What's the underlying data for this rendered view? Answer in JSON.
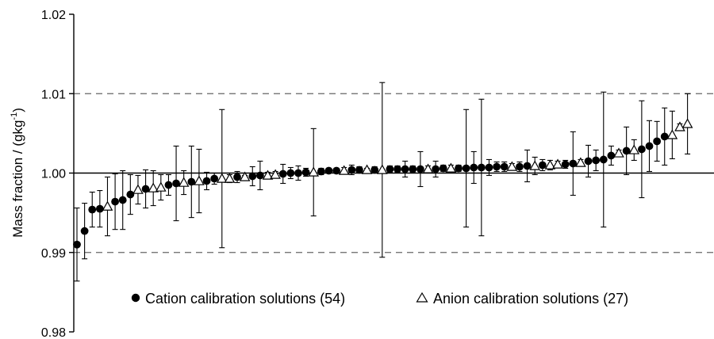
{
  "chart_data": {
    "type": "scatter",
    "title": "",
    "xlabel": "",
    "ylabel": "Mass fraction  /  (gkg",
    "ylabel_superscript": "-1",
    "ylabel_suffix": ")",
    "ylim": [
      0.98,
      1.02
    ],
    "y_ticks": [
      "0.98",
      "0.99",
      "1.00",
      "1.01",
      "1.02"
    ],
    "grid": "dashed reference lines at 0.99 and 1.01, solid line at 1.00",
    "legend_position": "bottom",
    "series": [
      {
        "name": "Cation calibration solutions (54)",
        "marker": "filled-circle",
        "color": "#000000",
        "points": [
          {
            "x": 1,
            "y": 0.991,
            "err": 0.0046
          },
          {
            "x": 2,
            "y": 0.9927,
            "err": 0.0035
          },
          {
            "x": 3,
            "y": 0.9954,
            "err": 0.0022
          },
          {
            "x": 4,
            "y": 0.9955,
            "err": 0.0023
          },
          {
            "x": 6,
            "y": 0.9964,
            "err": 0.0035
          },
          {
            "x": 7,
            "y": 0.9966,
            "err": 0.0037
          },
          {
            "x": 8,
            "y": 0.9973,
            "err": 0.0025
          },
          {
            "x": 10,
            "y": 0.998,
            "err": 0.0024
          },
          {
            "x": 13,
            "y": 0.9985,
            "err": 0.0013
          },
          {
            "x": 14,
            "y": 0.9987,
            "err": 0.0047
          },
          {
            "x": 16,
            "y": 0.9989,
            "err": 0.0045
          },
          {
            "x": 18,
            "y": 0.999,
            "err": 0.0011
          },
          {
            "x": 19,
            "y": 0.9993,
            "err": 0.0007
          },
          {
            "x": 22,
            "y": 0.9995,
            "err": 0.0007
          },
          {
            "x": 24,
            "y": 0.9996,
            "err": 0.0012
          },
          {
            "x": 25,
            "y": 0.9997,
            "err": 0.0018
          },
          {
            "x": 28,
            "y": 0.9999,
            "err": 0.0012
          },
          {
            "x": 29,
            "y": 1.0,
            "err": 0.0007
          },
          {
            "x": 30,
            "y": 1.0,
            "err": 0.0009
          },
          {
            "x": 31,
            "y": 1.0001,
            "err": 0.0005
          },
          {
            "x": 33,
            "y": 1.0002,
            "err": 0.0004
          },
          {
            "x": 34,
            "y": 1.0003,
            "err": 0.0003
          },
          {
            "x": 35,
            "y": 1.0003,
            "err": 0.0003
          },
          {
            "x": 37,
            "y": 1.0004,
            "err": 0.0006
          },
          {
            "x": 38,
            "y": 1.0004,
            "err": 0.0004
          },
          {
            "x": 40,
            "y": 1.0004,
            "err": 0.0004
          },
          {
            "x": 42,
            "y": 1.0005,
            "err": 0.0004
          },
          {
            "x": 43,
            "y": 1.0005,
            "err": 0.0004
          },
          {
            "x": 44,
            "y": 1.0005,
            "err": 0.001
          },
          {
            "x": 45,
            "y": 1.0005,
            "err": 0.0004
          },
          {
            "x": 46,
            "y": 1.0005,
            "err": 0.0022
          },
          {
            "x": 48,
            "y": 1.0005,
            "err": 0.001
          },
          {
            "x": 49,
            "y": 1.0006,
            "err": 0.0004
          },
          {
            "x": 51,
            "y": 1.0006,
            "err": 0.0004
          },
          {
            "x": 52,
            "y": 1.0006,
            "err": 0.0074
          },
          {
            "x": 53,
            "y": 1.0007,
            "err": 0.002
          },
          {
            "x": 54,
            "y": 1.0007,
            "err": 0.0086
          },
          {
            "x": 55,
            "y": 1.0007,
            "err": 0.001
          },
          {
            "x": 56,
            "y": 1.0008,
            "err": 0.0006
          },
          {
            "x": 57,
            "y": 1.0008,
            "err": 0.0006
          },
          {
            "x": 59,
            "y": 1.0008,
            "err": 0.0006
          },
          {
            "x": 60,
            "y": 1.0009,
            "err": 0.002
          },
          {
            "x": 62,
            "y": 1.001,
            "err": 0.0007
          },
          {
            "x": 65,
            "y": 1.0011,
            "err": 0.0005
          },
          {
            "x": 66,
            "y": 1.0012,
            "err": 0.004
          },
          {
            "x": 68,
            "y": 1.0015,
            "err": 0.002
          },
          {
            "x": 69,
            "y": 1.0016,
            "err": 0.0013
          },
          {
            "x": 70,
            "y": 1.0017,
            "err": 0.0085
          },
          {
            "x": 71,
            "y": 1.0022,
            "err": 0.0012
          },
          {
            "x": 73,
            "y": 1.0028,
            "err": 0.003
          },
          {
            "x": 75,
            "y": 1.003,
            "err": 0.0061
          },
          {
            "x": 76,
            "y": 1.0034,
            "err": 0.0032
          },
          {
            "x": 77,
            "y": 1.004,
            "err": 0.0025
          },
          {
            "x": 78,
            "y": 1.0046,
            "err": 0.0036
          }
        ]
      },
      {
        "name": "Anion calibration solutions (27)",
        "marker": "open-triangle",
        "color": "#000000",
        "points": [
          {
            "x": 5,
            "y": 0.9958,
            "err": 0.0037
          },
          {
            "x": 9,
            "y": 0.9979,
            "err": 0.0018
          },
          {
            "x": 11,
            "y": 0.9981,
            "err": 0.0022
          },
          {
            "x": 12,
            "y": 0.9982,
            "err": 0.0016
          },
          {
            "x": 15,
            "y": 0.9988,
            "err": 0.0015
          },
          {
            "x": 17,
            "y": 0.999,
            "err": 0.004
          },
          {
            "x": 20,
            "y": 0.9993,
            "err": 0.0087
          },
          {
            "x": 21,
            "y": 0.9993,
            "err": 0.0005
          },
          {
            "x": 23,
            "y": 0.9995,
            "err": 0.0002
          },
          {
            "x": 26,
            "y": 0.9997,
            "err": 0.0004
          },
          {
            "x": 27,
            "y": 0.9998,
            "err": 0.0004
          },
          {
            "x": 32,
            "y": 1.0001,
            "err": 0.0055
          },
          {
            "x": 36,
            "y": 1.0003,
            "err": 0.0004
          },
          {
            "x": 39,
            "y": 1.0004,
            "err": 0.0002
          },
          {
            "x": 41,
            "y": 1.0004,
            "err": 0.011
          },
          {
            "x": 47,
            "y": 1.0005,
            "err": 0.0004
          },
          {
            "x": 50,
            "y": 1.0006,
            "err": 0.0004
          },
          {
            "x": 58,
            "y": 1.0008,
            "err": 0.0004
          },
          {
            "x": 61,
            "y": 1.0009,
            "err": 0.0011
          },
          {
            "x": 63,
            "y": 1.001,
            "err": 0.0006
          },
          {
            "x": 64,
            "y": 1.0011,
            "err": 0.0004
          },
          {
            "x": 67,
            "y": 1.0013,
            "err": 0.0004
          },
          {
            "x": 72,
            "y": 1.0025,
            "err": 0.0004
          },
          {
            "x": 74,
            "y": 1.0029,
            "err": 0.0013
          },
          {
            "x": 79,
            "y": 1.0048,
            "err": 0.003
          },
          {
            "x": 80,
            "y": 1.0058,
            "err": 0.0004
          },
          {
            "x": 81,
            "y": 1.0062,
            "err": 0.0038
          }
        ]
      }
    ]
  }
}
